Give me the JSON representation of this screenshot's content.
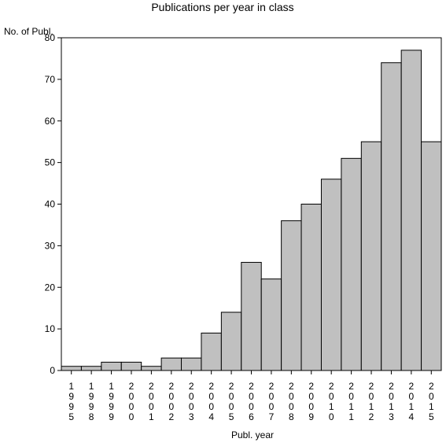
{
  "chart_data": {
    "type": "bar",
    "title": "Publications per year in class",
    "ylabel": "No. of Publ.",
    "xlabel": "Publ. year",
    "categories": [
      "1995",
      "1998",
      "1999",
      "2000",
      "2001",
      "2002",
      "2003",
      "2004",
      "2005",
      "2006",
      "2007",
      "2008",
      "2009",
      "2010",
      "2011",
      "2012",
      "2013",
      "2014",
      "2015"
    ],
    "values": [
      1,
      1,
      2,
      2,
      1,
      3,
      3,
      9,
      14,
      26,
      22,
      36,
      40,
      46,
      51,
      55,
      74,
      77,
      55
    ],
    "ylim": [
      0,
      80
    ],
    "yticks": [
      "0",
      "10",
      "20",
      "30",
      "40",
      "50",
      "60",
      "70",
      "80"
    ],
    "grid": false,
    "colors": {
      "bar_fill": "#c0c0c0",
      "bar_stroke": "#000000"
    }
  }
}
